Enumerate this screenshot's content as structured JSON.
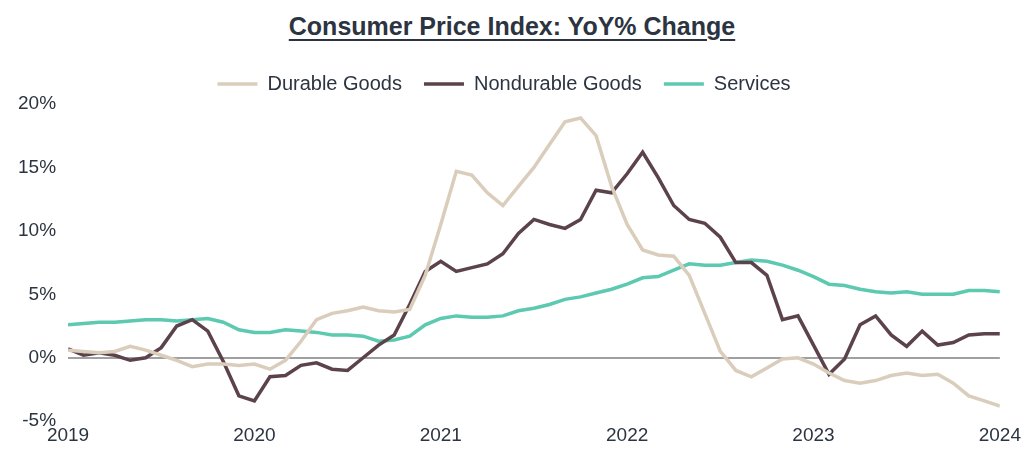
{
  "chart_data": {
    "type": "line",
    "title": "Consumer Price Index: YoY% Change",
    "categories": [
      "2019",
      null,
      null,
      null,
      null,
      null,
      null,
      null,
      null,
      null,
      null,
      null,
      "2020",
      null,
      null,
      null,
      null,
      null,
      null,
      null,
      null,
      null,
      null,
      null,
      "2021",
      null,
      null,
      null,
      null,
      null,
      null,
      null,
      null,
      null,
      null,
      null,
      "2022",
      null,
      null,
      null,
      null,
      null,
      null,
      null,
      null,
      null,
      null,
      null,
      "2023",
      null,
      null,
      null,
      null,
      null,
      null,
      null,
      null,
      null,
      null,
      null,
      "2024"
    ],
    "series": [
      {
        "name": "Durable Goods",
        "color": "#dacdbb",
        "values": [
          0.6,
          0.5,
          0.4,
          0.5,
          0.9,
          0.6,
          0.2,
          -0.2,
          -0.7,
          -0.5,
          -0.5,
          -0.6,
          -0.5,
          -0.9,
          -0.2,
          1.3,
          3.0,
          3.5,
          3.7,
          4.0,
          3.7,
          3.6,
          3.8,
          6.5,
          10.5,
          14.7,
          14.4,
          13.0,
          12.0,
          13.5,
          15.0,
          16.8,
          18.6,
          18.9,
          17.5,
          13.5,
          10.5,
          8.5,
          8.1,
          8.0,
          6.5,
          3.5,
          0.5,
          -1.0,
          -1.5,
          -0.8,
          -0.1,
          0.0,
          -0.5,
          -1.2,
          -1.8,
          -2.0,
          -1.8,
          -1.4,
          -1.2,
          -1.4,
          -1.3,
          -2.0,
          -3.0,
          -3.4,
          -3.8
        ]
      },
      {
        "name": "Nondurable Goods",
        "color": "#5c424b",
        "values": [
          0.7,
          0.2,
          0.4,
          0.2,
          -0.2,
          0.0,
          0.8,
          2.5,
          3.0,
          2.1,
          -0.3,
          -3.0,
          -3.4,
          -1.5,
          -1.4,
          -0.6,
          -0.4,
          -0.9,
          -1.0,
          0.0,
          1.0,
          1.8,
          4.2,
          6.8,
          7.6,
          6.8,
          7.1,
          7.4,
          8.2,
          9.8,
          10.9,
          10.5,
          10.2,
          10.9,
          13.2,
          13.0,
          14.5,
          16.2,
          14.2,
          12.0,
          10.9,
          10.6,
          9.5,
          7.5,
          7.5,
          6.5,
          3.0,
          3.3,
          1.0,
          -1.3,
          -0.1,
          2.6,
          3.3,
          1.8,
          0.9,
          2.1,
          1.0,
          1.2,
          1.8,
          1.9,
          1.9
        ]
      },
      {
        "name": "Services",
        "color": "#5cc9b0",
        "values": [
          2.6,
          2.7,
          2.8,
          2.8,
          2.9,
          3.0,
          3.0,
          2.9,
          3.0,
          3.1,
          2.8,
          2.2,
          2.0,
          2.0,
          2.2,
          2.1,
          2.0,
          1.8,
          1.8,
          1.7,
          1.3,
          1.4,
          1.7,
          2.6,
          3.1,
          3.3,
          3.2,
          3.2,
          3.3,
          3.7,
          3.9,
          4.2,
          4.6,
          4.8,
          5.1,
          5.4,
          5.8,
          6.3,
          6.4,
          6.9,
          7.4,
          7.3,
          7.3,
          7.5,
          7.7,
          7.6,
          7.3,
          6.9,
          6.4,
          5.8,
          5.7,
          5.4,
          5.2,
          5.1,
          5.2,
          5.0,
          5.0,
          5.0,
          5.3,
          5.3,
          5.2
        ]
      }
    ],
    "ylim": [
      -5,
      20
    ],
    "yticks": [
      {
        "value": -5,
        "label": "-5%"
      },
      {
        "value": 0,
        "label": "0%"
      },
      {
        "value": 5,
        "label": "5%"
      },
      {
        "value": 10,
        "label": "10%"
      },
      {
        "value": 15,
        "label": "15%"
      },
      {
        "value": 20,
        "label": "20%"
      }
    ],
    "grid": false,
    "legend": "top"
  }
}
